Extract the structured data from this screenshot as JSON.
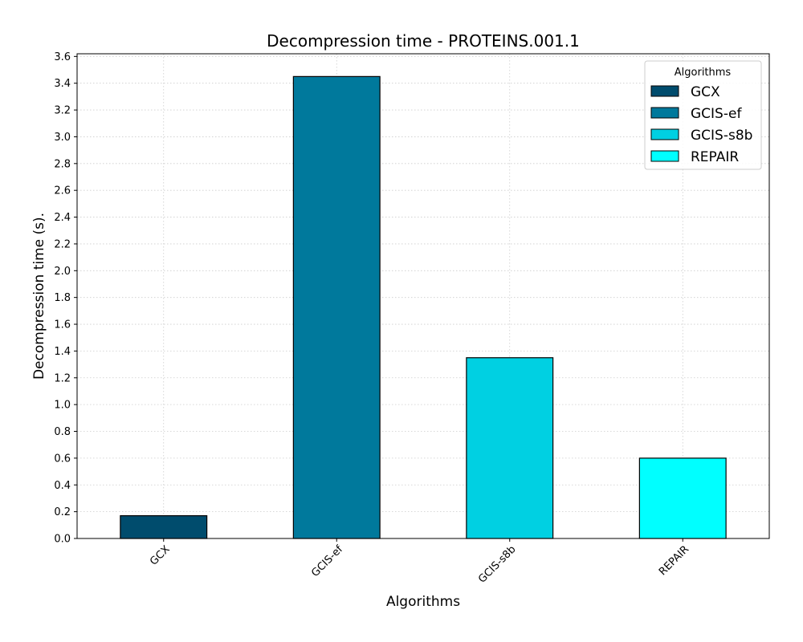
{
  "chart_data": {
    "type": "bar",
    "title": "Decompression time -  PROTEINS.001.1",
    "xlabel": "Algorithms",
    "ylabel": "Decompression time (s).",
    "categories": [
      "GCX",
      "GCIS-ef",
      "GCIS-s8b",
      "REPAIR"
    ],
    "values": [
      0.17,
      3.45,
      1.35,
      0.6
    ],
    "colors": [
      "#004c6d",
      "#00799c",
      "#00d0e2",
      "#00ffff"
    ],
    "ylim": [
      0,
      3.62
    ],
    "yticks": [
      "0.0",
      "0.2",
      "0.4",
      "0.6",
      "0.8",
      "1.0",
      "1.2",
      "1.4",
      "1.6",
      "1.8",
      "2.0",
      "2.2",
      "2.4",
      "2.6",
      "2.8",
      "3.0",
      "3.2",
      "3.4",
      "3.6"
    ],
    "grid": true,
    "legend": {
      "title": "Algorithms",
      "position": "top-right",
      "entries": [
        "GCX",
        "GCIS-ef",
        "GCIS-s8b",
        "REPAIR"
      ]
    }
  }
}
